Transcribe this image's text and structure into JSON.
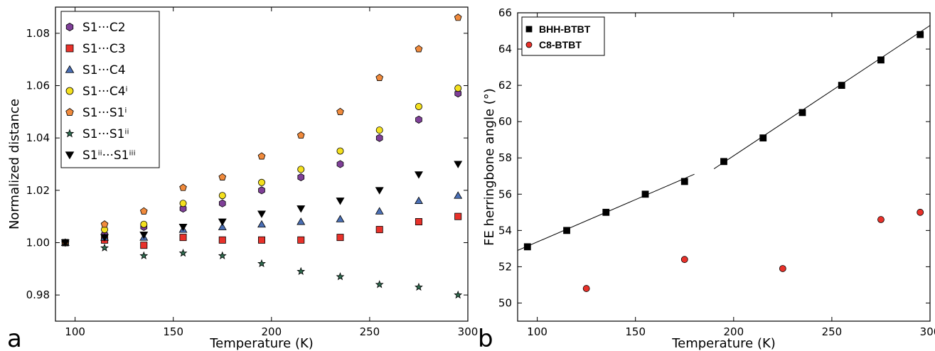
{
  "chart_data": [
    {
      "type": "scatter",
      "panel_label": "a",
      "xlabel": "Temperature (K)",
      "ylabel": "Normalized distance",
      "xlim": [
        90,
        300
      ],
      "ylim": [
        0.97,
        1.09
      ],
      "xticks": [
        100,
        150,
        200,
        250,
        300
      ],
      "yticks": [
        0.98,
        1.0,
        1.02,
        1.04,
        1.06,
        1.08
      ],
      "grid": false,
      "legend_position": "top-left",
      "series": [
        {
          "name": "S1···C2",
          "marker": "hexagon",
          "color": "#7f3f98",
          "x": [
            95,
            115,
            135,
            155,
            175,
            195,
            215,
            235,
            255,
            275,
            295
          ],
          "y": [
            1.0,
            1.003,
            1.006,
            1.013,
            1.015,
            1.02,
            1.025,
            1.03,
            1.04,
            1.047,
            1.057
          ]
        },
        {
          "name": "S1···C3",
          "marker": "square",
          "color": "#e8312a",
          "x": [
            95,
            115,
            135,
            155,
            175,
            195,
            215,
            235,
            255,
            275,
            295
          ],
          "y": [
            1.0,
            1.001,
            0.999,
            1.002,
            1.001,
            1.001,
            1.001,
            1.002,
            1.005,
            1.008,
            1.01
          ]
        },
        {
          "name": "S1···C4",
          "marker": "triangle",
          "color": "#4a6fb5",
          "x": [
            95,
            115,
            135,
            155,
            175,
            195,
            215,
            235,
            255,
            275,
            295
          ],
          "y": [
            1.0,
            1.002,
            1.002,
            1.005,
            1.006,
            1.007,
            1.008,
            1.009,
            1.012,
            1.016,
            1.018
          ]
        },
        {
          "name": "S1···C4ⁱ",
          "marker": "circle",
          "color": "#f4e01e",
          "x": [
            95,
            115,
            135,
            155,
            175,
            195,
            215,
            235,
            255,
            275,
            295
          ],
          "y": [
            1.0,
            1.005,
            1.007,
            1.015,
            1.018,
            1.023,
            1.028,
            1.035,
            1.043,
            1.052,
            1.059
          ]
        },
        {
          "name": "S1···S1ⁱ",
          "marker": "pentagon",
          "color": "#f08a3c",
          "x": [
            95,
            115,
            135,
            155,
            175,
            195,
            215,
            235,
            255,
            275,
            295
          ],
          "y": [
            1.0,
            1.007,
            1.012,
            1.021,
            1.025,
            1.033,
            1.041,
            1.05,
            1.063,
            1.074,
            1.086
          ]
        },
        {
          "name": "S1···S1ⁱⁱ",
          "marker": "star",
          "color": "#2f6b4f",
          "x": [
            95,
            115,
            135,
            155,
            175,
            195,
            215,
            235,
            255,
            275,
            295
          ],
          "y": [
            1.0,
            0.998,
            0.995,
            0.996,
            0.995,
            0.992,
            0.989,
            0.987,
            0.984,
            0.983,
            0.98
          ]
        },
        {
          "name": "S1ⁱⁱ···S1ⁱⁱⁱ",
          "marker": "triangle-down",
          "color": "#000000",
          "x": [
            95,
            115,
            135,
            155,
            175,
            195,
            215,
            235,
            255,
            275,
            295
          ],
          "y": [
            1.0,
            1.002,
            1.003,
            1.006,
            1.008,
            1.011,
            1.013,
            1.016,
            1.02,
            1.026,
            1.03
          ]
        }
      ]
    },
    {
      "type": "scatter",
      "panel_label": "b",
      "xlabel": "Temperature (K)",
      "ylabel": "FE herringbone angle (°)",
      "xlim": [
        90,
        300
      ],
      "ylim": [
        49,
        66
      ],
      "xticks": [
        100,
        150,
        200,
        250,
        300
      ],
      "yticks": [
        50,
        52,
        54,
        56,
        58,
        60,
        62,
        64,
        66
      ],
      "grid": false,
      "legend_position": "top-left",
      "series": [
        {
          "name": "BHH-BTBT",
          "marker": "square",
          "color": "#000000",
          "x": [
            95,
            115,
            135,
            155,
            175,
            195,
            215,
            235,
            255,
            275,
            295
          ],
          "y": [
            53.1,
            54.0,
            55.0,
            56.0,
            56.7,
            57.8,
            59.1,
            60.5,
            62.0,
            63.4,
            64.8
          ]
        },
        {
          "name": "C8-BTBT",
          "marker": "circle",
          "color": "#e8312a",
          "x": [
            125,
            175,
            225,
            275,
            295
          ],
          "y": [
            50.8,
            52.4,
            51.9,
            54.6,
            55.0
          ]
        }
      ],
      "fit_lines": [
        {
          "x": [
            90,
            180
          ],
          "y": [
            52.9,
            57.1
          ]
        },
        {
          "x": [
            190,
            300
          ],
          "y": [
            57.4,
            65.3
          ]
        }
      ]
    }
  ]
}
